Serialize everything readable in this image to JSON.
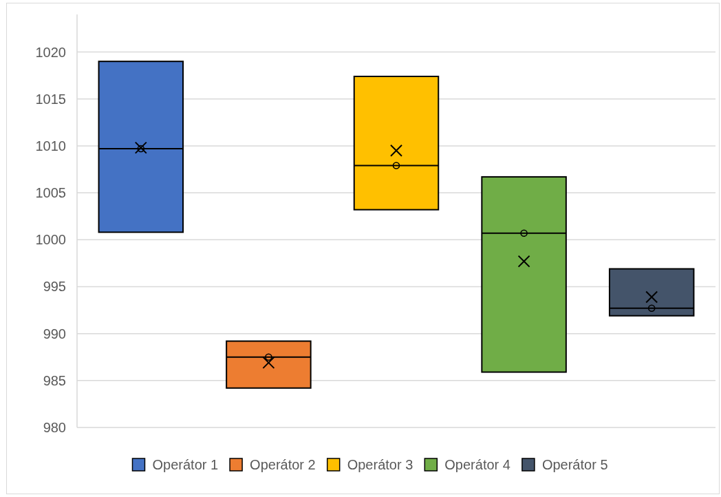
{
  "chart_data": {
    "type": "box",
    "categories": [
      null,
      null,
      null,
      null,
      null
    ],
    "ylim": [
      980,
      1024
    ],
    "yticks": [
      980,
      985,
      990,
      995,
      1000,
      1005,
      1010,
      1015,
      1020
    ],
    "grid": "y",
    "legend": "bottom",
    "series": [
      {
        "name": "Operátor 1",
        "color": "#4472c4",
        "boxes": [
          {
            "low": 1000.8,
            "q1": 1000.8,
            "median": 1009.7,
            "q3": 1019.0,
            "high": 1019.0,
            "mean": 1009.8
          },
          null,
          null,
          null,
          null
        ]
      },
      {
        "name": "Operátor 2",
        "color": "#ed7d31",
        "boxes": [
          null,
          {
            "low": 984.2,
            "q1": 984.2,
            "median": 987.5,
            "q3": 989.2,
            "high": 989.2,
            "mean": 986.9
          },
          null,
          null,
          null
        ]
      },
      {
        "name": "Operátor 3",
        "color": "#ffc000",
        "boxes": [
          null,
          null,
          {
            "low": 1003.2,
            "q1": 1003.2,
            "median": 1007.9,
            "q3": 1017.4,
            "high": 1017.4,
            "mean": 1009.5
          },
          null,
          null
        ]
      },
      {
        "name": "Operátor 4",
        "color": "#70ad47",
        "boxes": [
          null,
          null,
          null,
          {
            "low": 985.9,
            "q1": 985.9,
            "median": 1000.7,
            "q3": 1006.7,
            "high": 1006.7,
            "mean": 997.7
          },
          null
        ]
      },
      {
        "name": "Operátor 5",
        "color": "#44546a",
        "boxes": [
          null,
          null,
          null,
          null,
          {
            "low": 991.9,
            "q1": 991.9,
            "median": 992.7,
            "q3": 996.9,
            "high": 996.9,
            "mean": 993.9
          }
        ]
      },
      {
        "type": "scatter",
        "color": "#000000",
        "marker": "circle",
        "values": [
          1009.7,
          987.5,
          1007.9,
          1000.7,
          992.7
        ]
      }
    ]
  }
}
